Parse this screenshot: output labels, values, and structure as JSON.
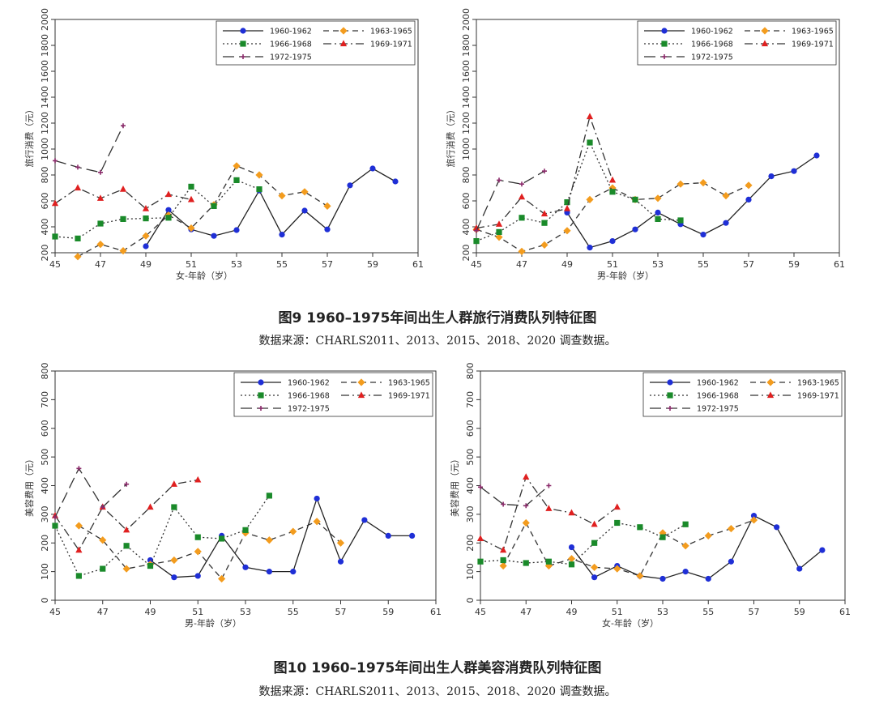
{
  "figures": [
    {
      "caption": "图9   1960–1975年间出生人群旅行消费队列特征图",
      "source": "数据来源：CHARLS2011、2013、2015、2018、2020 调查数据。"
    },
    {
      "caption": "图10   1960–1975年间出生人群美容消费队列特征图",
      "source": "数据来源：CHARLS2011、2013、2015、2018、2020 调查数据。"
    }
  ],
  "colors": {
    "c1960": "#1f2fd6",
    "c1963": "#f39c1e",
    "c1966": "#1a8a2a",
    "c1969": "#e02020",
    "c1972": "#8a2a6a",
    "line": "#333333"
  },
  "chart_data": [
    {
      "type": "line",
      "title": "",
      "xlabel": "女-年龄（岁）",
      "ylabel": "旅行消费（元）",
      "xlim": [
        45,
        61
      ],
      "ylim": [
        200,
        2000
      ],
      "xticks": [
        45,
        47,
        49,
        51,
        53,
        55,
        57,
        59,
        61
      ],
      "yticks": [
        200,
        400,
        600,
        800,
        1000,
        1200,
        1400,
        1600,
        1800,
        2000
      ],
      "legend_position": "top-right",
      "series": [
        {
          "name": "1960-1962",
          "x": [
            49,
            50,
            51,
            52,
            53,
            54,
            55,
            56,
            57,
            58,
            59,
            60
          ],
          "y": [
            250,
            530,
            380,
            330,
            375,
            680,
            340,
            525,
            380,
            720,
            850,
            750
          ]
        },
        {
          "name": "1963-1965",
          "x": [
            46,
            47,
            48,
            49,
            50,
            51,
            52,
            53,
            54,
            55,
            56,
            57
          ],
          "y": [
            170,
            265,
            215,
            330,
            490,
            390,
            570,
            870,
            800,
            640,
            670,
            560
          ]
        },
        {
          "name": "1966-1968",
          "x": [
            45,
            46,
            47,
            48,
            49,
            50,
            51,
            52,
            53,
            54
          ],
          "y": [
            325,
            310,
            425,
            460,
            465,
            470,
            710,
            560,
            760,
            690
          ]
        },
        {
          "name": "1969-1971",
          "x": [
            45,
            46,
            47,
            48,
            49,
            50,
            51
          ],
          "y": [
            580,
            700,
            620,
            690,
            540,
            650,
            610
          ]
        },
        {
          "name": "1972-1975",
          "x": [
            45,
            46,
            47,
            48
          ],
          "y": [
            910,
            860,
            820,
            1180
          ]
        }
      ]
    },
    {
      "type": "line",
      "title": "",
      "xlabel": "男-年龄（岁）",
      "ylabel": "旅行消费（元）",
      "xlim": [
        45,
        61
      ],
      "ylim": [
        200,
        2000
      ],
      "xticks": [
        45,
        47,
        49,
        51,
        53,
        55,
        57,
        59,
        61
      ],
      "yticks": [
        200,
        400,
        600,
        800,
        1000,
        1200,
        1400,
        1600,
        1800,
        2000
      ],
      "legend_position": "top-right",
      "series": [
        {
          "name": "1960-1962",
          "x": [
            49,
            50,
            51,
            52,
            53,
            54,
            55,
            56,
            57,
            58,
            59,
            60
          ],
          "y": [
            510,
            240,
            290,
            380,
            510,
            420,
            340,
            430,
            610,
            790,
            830,
            950
          ]
        },
        {
          "name": "1963-1965",
          "x": [
            45,
            46,
            47,
            48,
            49,
            50,
            51,
            52,
            53,
            54,
            55,
            56,
            57
          ],
          "y": [
            380,
            320,
            210,
            260,
            370,
            610,
            700,
            610,
            620,
            730,
            740,
            640,
            720
          ]
        },
        {
          "name": "1966-1968",
          "x": [
            45,
            46,
            47,
            48,
            49,
            50,
            51,
            52,
            53,
            54
          ],
          "y": [
            290,
            360,
            470,
            430,
            590,
            1050,
            670,
            610,
            460,
            450
          ]
        },
        {
          "name": "1969-1971",
          "x": [
            45,
            46,
            47,
            48,
            49,
            50,
            51
          ],
          "y": [
            390,
            420,
            630,
            500,
            540,
            1250,
            760
          ]
        },
        {
          "name": "1972-1975",
          "x": [
            45,
            46,
            47,
            48
          ],
          "y": [
            370,
            760,
            730,
            830
          ]
        }
      ]
    },
    {
      "type": "line",
      "title": "",
      "xlabel": "男-年龄（岁）",
      "ylabel": "美容费用（元）",
      "xlim": [
        45,
        61
      ],
      "ylim": [
        0,
        800
      ],
      "xticks": [
        45,
        47,
        49,
        51,
        53,
        55,
        57,
        59,
        61
      ],
      "yticks": [
        0,
        100,
        200,
        300,
        400,
        500,
        600,
        700,
        800
      ],
      "legend_position": "top-right",
      "series": [
        {
          "name": "1960-1962",
          "x": [
            49,
            50,
            51,
            52,
            53,
            54,
            55,
            56,
            57,
            58,
            59,
            60
          ],
          "y": [
            140,
            80,
            85,
            225,
            115,
            100,
            100,
            355,
            135,
            280,
            225,
            225
          ]
        },
        {
          "name": "1963-1965",
          "x": [
            46,
            47,
            48,
            49,
            50,
            51,
            52,
            53,
            54,
            55,
            56,
            57
          ],
          "y": [
            260,
            210,
            110,
            125,
            140,
            170,
            75,
            235,
            210,
            240,
            275,
            200
          ]
        },
        {
          "name": "1966-1968",
          "x": [
            45,
            46,
            47,
            48,
            49,
            50,
            51,
            52,
            53,
            54
          ],
          "y": [
            260,
            85,
            110,
            190,
            120,
            325,
            220,
            215,
            245,
            365
          ]
        },
        {
          "name": "1969-1971",
          "x": [
            45,
            46,
            47,
            48,
            49,
            50,
            51
          ],
          "y": [
            295,
            175,
            325,
            245,
            325,
            405,
            420
          ]
        },
        {
          "name": "1972-1975",
          "x": [
            45,
            46,
            47,
            48
          ],
          "y": [
            290,
            460,
            325,
            405
          ]
        }
      ]
    },
    {
      "type": "line",
      "title": "",
      "xlabel": "女-年龄（岁）",
      "ylabel": "美容费用（元）",
      "xlim": [
        45,
        61
      ],
      "ylim": [
        0,
        800
      ],
      "xticks": [
        45,
        47,
        49,
        51,
        53,
        55,
        57,
        59,
        61
      ],
      "yticks": [
        0,
        100,
        200,
        300,
        400,
        500,
        600,
        700,
        800
      ],
      "legend_position": "top-right",
      "series": [
        {
          "name": "1960-1962",
          "x": [
            49,
            50,
            51,
            52,
            53,
            54,
            55,
            56,
            57,
            58,
            59,
            60
          ],
          "y": [
            185,
            80,
            120,
            85,
            75,
            100,
            75,
            135,
            295,
            255,
            110,
            175
          ]
        },
        {
          "name": "1963-1965",
          "x": [
            46,
            47,
            48,
            49,
            50,
            51,
            52,
            53,
            54,
            55,
            56,
            57
          ],
          "y": [
            120,
            270,
            120,
            145,
            115,
            110,
            85,
            235,
            190,
            225,
            250,
            280
          ]
        },
        {
          "name": "1966-1968",
          "x": [
            45,
            46,
            47,
            48,
            49,
            50,
            51,
            52,
            53,
            54
          ],
          "y": [
            135,
            140,
            130,
            135,
            125,
            200,
            270,
            255,
            220,
            265
          ]
        },
        {
          "name": "1969-1971",
          "x": [
            45,
            46,
            47,
            48,
            49,
            50,
            51
          ],
          "y": [
            215,
            175,
            430,
            320,
            305,
            265,
            325
          ]
        },
        {
          "name": "1972-1975",
          "x": [
            45,
            46,
            47,
            48
          ],
          "y": [
            395,
            335,
            330,
            400
          ]
        }
      ]
    }
  ]
}
